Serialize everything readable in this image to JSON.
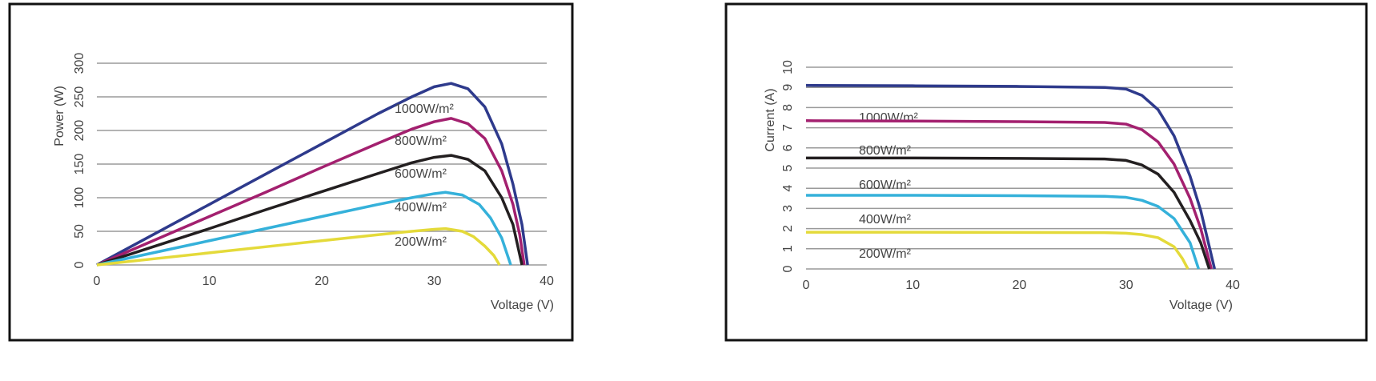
{
  "chart_data": [
    {
      "type": "line",
      "xlabel": "Voltage (V)",
      "ylabel": "Power (W)",
      "xlim": [
        0,
        40
      ],
      "ylim": [
        0,
        300
      ],
      "xticks": [
        0,
        10,
        20,
        30,
        40
      ],
      "yticks": [
        0,
        50,
        100,
        150,
        200,
        250,
        300
      ],
      "grid": true,
      "series": [
        {
          "name": "1000W/m²",
          "color": "#2e3a8c",
          "x": [
            0,
            5,
            10,
            15,
            20,
            25,
            28,
            30,
            31.5,
            33,
            34.5,
            36,
            37,
            37.8,
            38.3
          ],
          "values": [
            0,
            45,
            90,
            135,
            180,
            225,
            250,
            265,
            270,
            262,
            235,
            180,
            120,
            60,
            0
          ]
        },
        {
          "name": "800W/m²",
          "color": "#a3206f",
          "x": [
            0,
            5,
            10,
            15,
            20,
            25,
            28,
            30,
            31.5,
            33,
            34.5,
            36,
            37,
            37.6,
            38
          ],
          "values": [
            0,
            36,
            72,
            108,
            145,
            181,
            202,
            213,
            218,
            210,
            188,
            140,
            90,
            45,
            0
          ]
        },
        {
          "name": "600W/m²",
          "color": "#231f20",
          "x": [
            0,
            5,
            10,
            15,
            20,
            25,
            28,
            30,
            31.5,
            33,
            34.5,
            36,
            37,
            37.4,
            37.8
          ],
          "values": [
            0,
            27,
            54,
            82,
            109,
            136,
            152,
            160,
            163,
            157,
            140,
            100,
            60,
            30,
            0
          ]
        },
        {
          "name": "400W/m²",
          "color": "#35b1da",
          "x": [
            0,
            5,
            10,
            15,
            20,
            25,
            28,
            30,
            31,
            32.5,
            34,
            35,
            36,
            36.8
          ],
          "values": [
            0,
            18,
            36,
            54,
            72,
            90,
            100,
            106,
            108,
            104,
            90,
            70,
            40,
            0
          ]
        },
        {
          "name": "200W/m²",
          "color": "#e4da3a",
          "x": [
            0,
            5,
            10,
            15,
            20,
            25,
            28,
            30,
            31,
            32.5,
            33.5,
            34.5,
            35.3,
            35.8
          ],
          "values": [
            0,
            9,
            18,
            27,
            36,
            45,
            50,
            53,
            54,
            50,
            42,
            28,
            14,
            0
          ]
        }
      ]
    },
    {
      "type": "line",
      "xlabel": "Voltage (V)",
      "ylabel": "Current (A)",
      "xlim": [
        0,
        40
      ],
      "ylim": [
        0,
        10
      ],
      "xticks": [
        0,
        10,
        20,
        30,
        40
      ],
      "yticks": [
        0,
        1,
        2,
        3,
        4,
        5,
        6,
        7,
        8,
        9,
        10
      ],
      "grid": true,
      "series": [
        {
          "name": "1000W/m²",
          "color": "#2e3a8c",
          "x": [
            0,
            10,
            20,
            28,
            30,
            31.5,
            33,
            34.5,
            36,
            37,
            38.3
          ],
          "values": [
            9.1,
            9.08,
            9.05,
            9.0,
            8.92,
            8.6,
            7.9,
            6.6,
            4.6,
            2.9,
            0
          ]
        },
        {
          "name": "800W/m²",
          "color": "#a3206f",
          "x": [
            0,
            10,
            20,
            28,
            30,
            31.5,
            33,
            34.5,
            36,
            37,
            38
          ],
          "values": [
            7.35,
            7.33,
            7.3,
            7.26,
            7.18,
            6.9,
            6.3,
            5.2,
            3.5,
            2.0,
            0
          ]
        },
        {
          "name": "600W/m²",
          "color": "#231f20",
          "x": [
            0,
            10,
            20,
            28,
            30,
            31.5,
            33,
            34.5,
            36,
            37,
            37.8
          ],
          "values": [
            5.5,
            5.5,
            5.48,
            5.45,
            5.38,
            5.15,
            4.7,
            3.8,
            2.4,
            1.3,
            0
          ]
        },
        {
          "name": "400W/m²",
          "color": "#35b1da",
          "x": [
            0,
            10,
            20,
            28,
            30,
            31.5,
            33,
            34.5,
            36,
            36.8
          ],
          "values": [
            3.65,
            3.65,
            3.63,
            3.6,
            3.55,
            3.4,
            3.1,
            2.5,
            1.3,
            0
          ]
        },
        {
          "name": "200W/m²",
          "color": "#e4da3a",
          "x": [
            0,
            10,
            20,
            28,
            30,
            31.5,
            33,
            34.5,
            35.3,
            35.8
          ],
          "values": [
            1.82,
            1.82,
            1.81,
            1.8,
            1.77,
            1.7,
            1.55,
            1.1,
            0.5,
            0
          ]
        }
      ]
    }
  ]
}
